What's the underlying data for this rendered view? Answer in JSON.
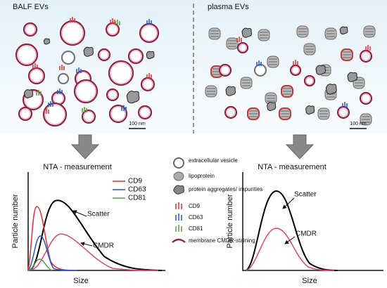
{
  "panels": [
    {
      "title": "BALF EVs",
      "scale_bar": "100 nm",
      "nta_title": "NTA - measurement",
      "legend": [
        "CD9",
        "CD63",
        "CD81"
      ],
      "scatter": "Scatter",
      "cmdr": "CMDR",
      "y_label": "Particle number",
      "x_label": "Size"
    },
    {
      "title": "plasma EVs",
      "scale_bar": "100 nm",
      "nta_title": "NTA - measurement",
      "scatter": "Scatter",
      "cmdr": "CMDR",
      "y_label": "Particle number",
      "x_label": "Size"
    }
  ],
  "key": {
    "vesicle": "extracellular vesicle",
    "lipoprotein": "lipoprotein",
    "aggregates": "protein aggregates/ impurities",
    "cd9": "CD9",
    "cd63": "CD63",
    "cd81": "CD81",
    "membrane": "membrane CMDR-staining"
  }
}
